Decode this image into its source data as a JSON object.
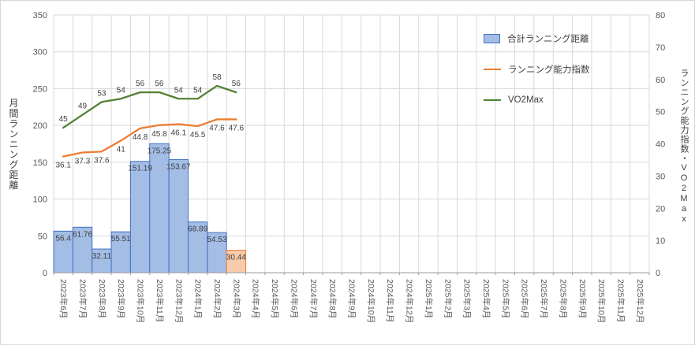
{
  "chart_data": {
    "type": "combo",
    "categories": [
      "2023年6月",
      "2023年7月",
      "2023年8月",
      "2023年9月",
      "2023年10月",
      "2023年11月",
      "2023年12月",
      "2024年1月",
      "2024年2月",
      "2024年3月",
      "2024年4月",
      "2024年5月",
      "2024年6月",
      "2024年7月",
      "2024年8月",
      "2024年9月",
      "2024年10月",
      "2024年11月",
      "2024年12月",
      "2025年1月",
      "2025年2月",
      "2025年3月",
      "2025年4月",
      "2025年5月",
      "2025年6月",
      "2025年7月",
      "2025年8月",
      "2025年9月",
      "2025年10月",
      "2025年11月",
      "2025年12月"
    ],
    "series": [
      {
        "name": "合計ランニング距離",
        "type": "bar",
        "axis": "left",
        "values": [
          56.4,
          61.76,
          32.11,
          55.51,
          151.19,
          175.25,
          153.67,
          68.89,
          54.53,
          30.44
        ],
        "labels": [
          "56.4",
          "61.76",
          "32.11",
          "55.51",
          "151.19",
          "175.25",
          "153.67",
          "68.89",
          "54.53",
          "30.44"
        ],
        "label_position": "inside-end",
        "fill": "#a3bde5",
        "border": "#4472c4",
        "highlight_index": 9,
        "highlight_fill": "#f8cbad",
        "highlight_border": "#ed7d31"
      },
      {
        "name": "ランニング能力指数",
        "type": "line",
        "axis": "right",
        "values": [
          36.1,
          37.3,
          37.6,
          41,
          44.8,
          45.8,
          46.1,
          45.5,
          47.6,
          47.6
        ],
        "labels": [
          "36.1",
          "37.3",
          "37.6",
          "41",
          "44.8",
          "45.8",
          "46.1",
          "45.5",
          "47.6",
          "47.6"
        ],
        "label_position": "below",
        "color": "#ed7d31"
      },
      {
        "name": "VO2Max",
        "type": "line",
        "axis": "right",
        "values": [
          45,
          49,
          53,
          54,
          56,
          56,
          54,
          54,
          58,
          56
        ],
        "labels": [
          "45",
          "49",
          "53",
          "54",
          "56",
          "56",
          "54",
          "54",
          "58",
          "56"
        ],
        "label_position": "above",
        "color": "#548235"
      }
    ],
    "left_axis": {
      "title": "月間ランニング距離",
      "min": 0,
      "max": 350,
      "step": 50
    },
    "right_axis": {
      "title": "ランニング能力指数・VO2Max",
      "min": 0,
      "max": 80,
      "step": 10
    },
    "legend": [
      "合計ランニング距離",
      "ランニング能力指数",
      "VO2Max"
    ],
    "legend_position": "top-right-inside",
    "grid": true,
    "colors": {
      "gridline": "#d9d9d9",
      "axis_line": "#9b9b9b",
      "axis_text": "#595959",
      "data_label": "#3f3f3f",
      "background": "#ffffff"
    }
  }
}
